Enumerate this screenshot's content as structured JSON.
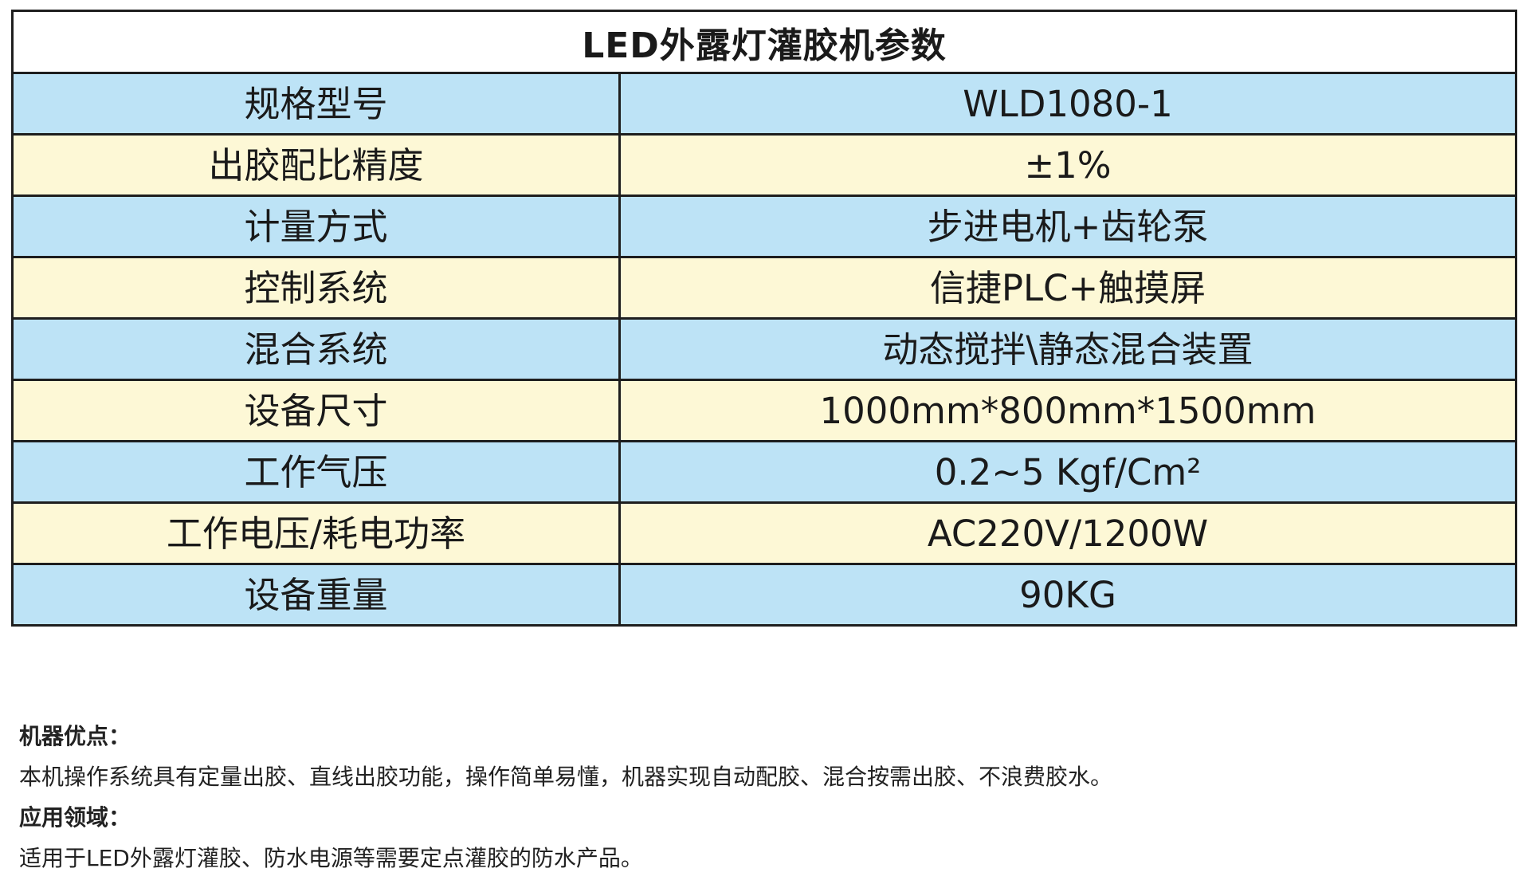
{
  "table": {
    "title": "LED外露灯灌胶机参数",
    "rows": [
      {
        "label": "规格型号",
        "value": "WLD1080-1"
      },
      {
        "label": "出胶配比精度",
        "value": "±1%"
      },
      {
        "label": "计量方式",
        "value": "步进电机+齿轮泵"
      },
      {
        "label": "控制系统",
        "value": "信捷PLC+触摸屏"
      },
      {
        "label": "混合系统",
        "value": "动态搅拌\\静态混合装置"
      },
      {
        "label": "设备尺寸",
        "value": "1000mm*800mm*1500mm"
      },
      {
        "label": "工作气压",
        "value": "0.2~5 Kgf/Cm²"
      },
      {
        "label": "工作电压/耗电功率",
        "value": "AC220V/1200W"
      },
      {
        "label": "设备重量",
        "value": "90KG"
      }
    ]
  },
  "notes": {
    "advantages_heading": "机器优点：",
    "advantages_text": "本机操作系统具有定量出胶、直线出胶功能，操作简单易懂，机器实现自动配胶、混合按需出胶、不浪费胶水。",
    "applications_heading": "应用领域：",
    "applications_text": "适用于LED外露灯灌胶、防水电源等需要定点灌胶的防水产品。"
  },
  "colors": {
    "row_blue": "#bde3f6",
    "row_cream": "#fdf8d6",
    "border": "#1e1e1e"
  }
}
